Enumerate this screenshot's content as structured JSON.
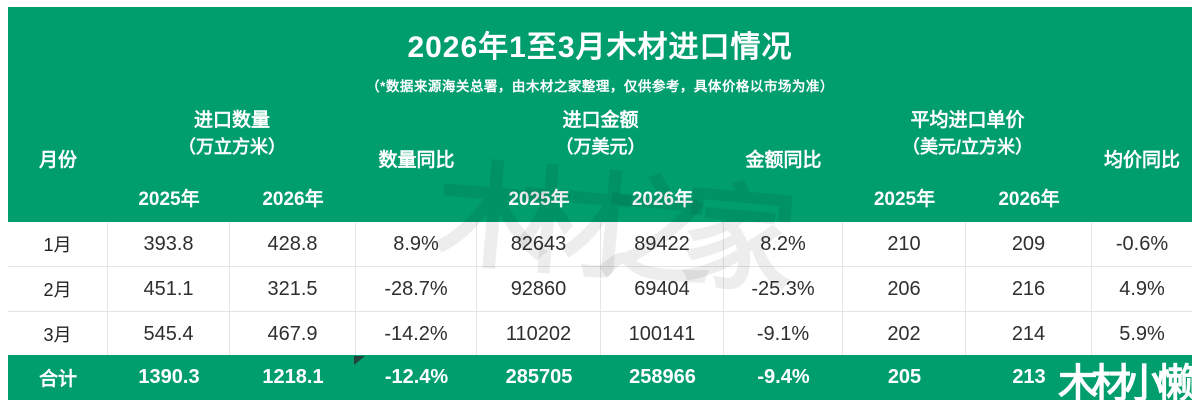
{
  "title": "2026年1至3月木材进口情况",
  "subtitle": "（*数据来源海关总署，由木材之家整理，仅供参考，具体价格以市场为准）",
  "colors": {
    "card_green": "#009e6d",
    "increase_red": "#f01414",
    "decrease_green": "#00a87e",
    "body_text": "#2f2f2f",
    "grid_line": "#e6e6e6"
  },
  "watermark_center": "木材之家",
  "watermark_brand": "木材小懒",
  "table": {
    "header": {
      "month": "月份",
      "qty_group": {
        "title": "进口数量",
        "unit": "（万立方米）"
      },
      "qty_yoy": "数量同比",
      "amount_group": {
        "title": "进口金额",
        "unit": "（万美元）"
      },
      "amount_yoy": "金额同比",
      "price_group": {
        "title": "平均进口单价",
        "unit": "（美元/立方米）"
      },
      "price_yoy": "均价同比",
      "year_2025": "2025年",
      "year_2026": "2026年"
    },
    "rows": [
      [
        "1月",
        "393.8",
        "428.8",
        "8.9%",
        "82643",
        "89422",
        "8.2%",
        "210",
        "209",
        "-0.6%"
      ],
      [
        "2月",
        "451.1",
        "321.5",
        "-28.7%",
        "92860",
        "69404",
        "-25.3%",
        "206",
        "216",
        "4.9%"
      ],
      [
        "3月",
        "545.4",
        "467.9",
        "-14.2%",
        "110202",
        "100141",
        "-9.1%",
        "202",
        "214",
        "5.9%"
      ]
    ],
    "total": [
      "合计",
      "1390.3",
      "1218.1",
      "-12.4%",
      "285705",
      "258966",
      "-9.4%",
      "205",
      "213",
      ""
    ]
  },
  "chart_data": {
    "type": "table",
    "title": "2026年1至3月木材进口情况",
    "columns": [
      "月份",
      "进口数量2025年(万立方米)",
      "进口数量2026年(万立方米)",
      "数量同比",
      "进口金额2025年(万美元)",
      "进口金额2026年(万美元)",
      "金额同比",
      "平均进口单价2025年(美元/立方米)",
      "平均进口单价2026年(美元/立方米)",
      "均价同比"
    ],
    "rows": [
      [
        "1月",
        393.8,
        428.8,
        "8.9%",
        82643,
        89422,
        "8.2%",
        210,
        209,
        "-0.6%"
      ],
      [
        "2月",
        451.1,
        321.5,
        "-28.7%",
        92860,
        69404,
        "-25.3%",
        206,
        216,
        "4.9%"
      ],
      [
        "3月",
        545.4,
        467.9,
        "-14.2%",
        110202,
        100141,
        "-9.1%",
        202,
        214,
        "5.9%"
      ],
      [
        "合计",
        1390.3,
        1218.1,
        "-12.4%",
        285705,
        258966,
        "-9.4%",
        205,
        213,
        null
      ]
    ]
  }
}
